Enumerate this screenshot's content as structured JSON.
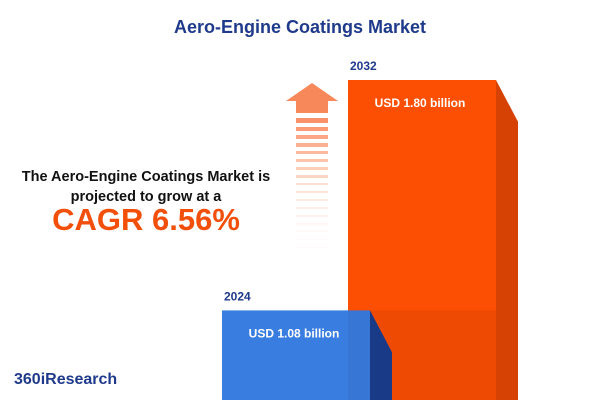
{
  "chart_data": {
    "type": "bar",
    "title": "Aero-Engine Coatings Market",
    "categories": [
      "2024",
      "2032"
    ],
    "values": [
      1.08,
      1.8
    ],
    "value_labels": [
      "USD 1.08 billion",
      "USD 1.80 billion"
    ],
    "colors": [
      "#3a7de0",
      "#fc4f04"
    ],
    "description": "The Aero-Engine Coatings Market is projected to grow at a",
    "highlight": "CAGR 6.56%",
    "brand": "360iResearch"
  }
}
